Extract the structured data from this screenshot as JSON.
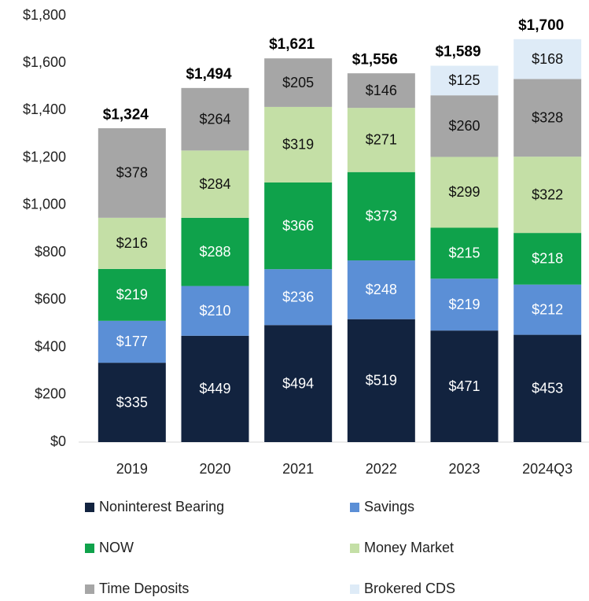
{
  "chart_data": {
    "type": "stacked_bar",
    "categories": [
      "2019",
      "2020",
      "2021",
      "2022",
      "2023",
      "2024Q3"
    ],
    "series": [
      {
        "name": "Noninterest Bearing",
        "color": "#12233f",
        "values": [
          335,
          449,
          494,
          519,
          471,
          453
        ],
        "value_labels": [
          "$335",
          "$449",
          "$494",
          "$519",
          "$471",
          "$453"
        ]
      },
      {
        "name": "Savings",
        "color": "#5b8fd6",
        "values": [
          177,
          210,
          236,
          248,
          219,
          212
        ],
        "value_labels": [
          "$177",
          "$210",
          "$236",
          "$248",
          "$219",
          "$212"
        ]
      },
      {
        "name": "NOW",
        "color": "#0fa24b",
        "values": [
          219,
          288,
          366,
          373,
          215,
          218
        ],
        "value_labels": [
          "$219",
          "$288",
          "$366",
          "$373",
          "$215",
          "$218"
        ]
      },
      {
        "name": "Money Market",
        "color": "#c4dfa6",
        "values": [
          216,
          284,
          319,
          271,
          299,
          322
        ],
        "value_labels": [
          "$216",
          "$284",
          "$319",
          "$271",
          "$299",
          "$322"
        ]
      },
      {
        "name": "Time Deposits",
        "color": "#a6a6a6",
        "values": [
          378,
          264,
          205,
          146,
          260,
          328
        ],
        "value_labels": [
          "$378",
          "$264",
          "$205",
          "$146",
          "$260",
          "$328"
        ]
      },
      {
        "name": "Brokered CDS",
        "color": "#deebf7",
        "values": [
          null,
          null,
          null,
          null,
          125,
          168
        ],
        "value_labels": [
          null,
          null,
          null,
          null,
          "$125",
          "$168"
        ]
      }
    ],
    "totals": [
      1324,
      1494,
      1621,
      1556,
      1589,
      1700
    ],
    "total_labels": [
      "$1,324",
      "$1,494",
      "$1,621",
      "$1,556",
      "$1,589",
      "$1,700"
    ],
    "ylim": [
      0,
      1800
    ],
    "yticks": [
      {
        "value": 0,
        "label": "$0"
      },
      {
        "value": 200,
        "label": "$200"
      },
      {
        "value": 400,
        "label": "$400"
      },
      {
        "value": 600,
        "label": "$600"
      },
      {
        "value": 800,
        "label": "$800"
      },
      {
        "value": 1000,
        "label": "$1,000"
      },
      {
        "value": 1200,
        "label": "$1,200"
      },
      {
        "value": 1400,
        "label": "$1,400"
      },
      {
        "value": 1600,
        "label": "$1,600"
      },
      {
        "value": 1800,
        "label": "$1,800"
      }
    ],
    "grid": false,
    "legend": "bottom"
  }
}
